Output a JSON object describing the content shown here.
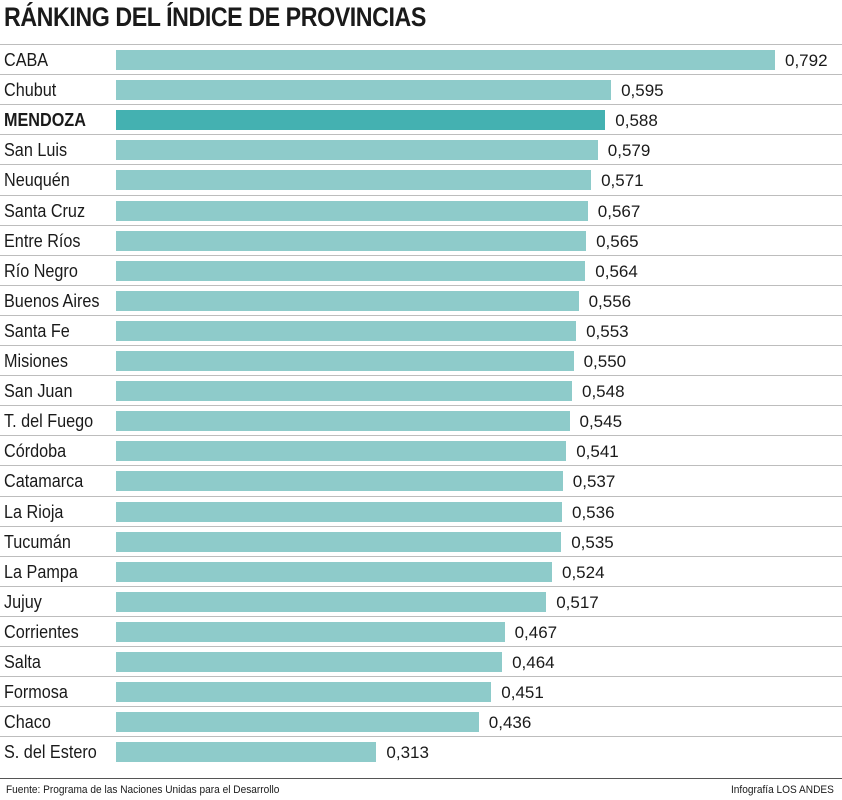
{
  "header": {
    "title": "RÁNKING DEL ÍNDICE DE PROVINCIAS"
  },
  "colors": {
    "bar": "#8ecbca",
    "highlight": "#44b1b1"
  },
  "chart_data": {
    "type": "bar",
    "orientation": "horizontal",
    "title": "RÁNKING DEL ÍNDICE DE PROVINCIAS",
    "xlim": [
      0,
      0.792
    ],
    "grid": false,
    "highlight": "MENDOZA",
    "categories": [
      "CABA",
      "Chubut",
      "MENDOZA",
      "San Luis",
      "Neuquén",
      "Santa Cruz",
      "Entre Ríos",
      "Río Negro",
      "Buenos Aires",
      "Santa Fe",
      "Misiones",
      "San Juan",
      "T. del Fuego",
      "Córdoba",
      "Catamarca",
      "La Rioja",
      "Tucumán",
      "La Pampa",
      "Jujuy",
      "Corrientes",
      "Salta",
      "Formosa",
      "Chaco",
      "S. del Estero"
    ],
    "values": [
      0.792,
      0.595,
      0.588,
      0.579,
      0.571,
      0.567,
      0.565,
      0.564,
      0.556,
      0.553,
      0.55,
      0.548,
      0.545,
      0.541,
      0.537,
      0.536,
      0.535,
      0.524,
      0.517,
      0.467,
      0.464,
      0.451,
      0.436,
      0.313
    ],
    "value_labels": [
      "0,792",
      "0,595",
      "0,588",
      "0,579",
      "0,571",
      "0,567",
      "0,565",
      "0,564",
      "0,556",
      "0,553",
      "0,550",
      "0,548",
      "0,545",
      "0,541",
      "0,537",
      "0,536",
      "0,535",
      "0,524",
      "0,517",
      "0,467",
      "0,464",
      "0,451",
      "0,436",
      "0,313"
    ]
  },
  "footer": {
    "source": "Fuente: Programa de las Naciones Unidas para el Desarrollo",
    "credit": "Infografía LOS ANDES"
  }
}
